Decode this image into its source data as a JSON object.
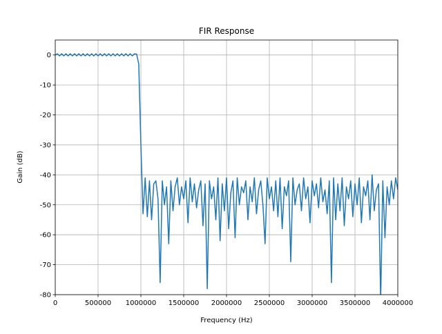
{
  "chart_data": {
    "type": "line",
    "title": "FIR Response",
    "x_label": "Frequency (Hz)",
    "y_label": "Gain (dB)",
    "x": [
      0,
      25000,
      50000,
      75000,
      100000,
      125000,
      150000,
      175000,
      200000,
      225000,
      250000,
      275000,
      300000,
      325000,
      350000,
      375000,
      400000,
      425000,
      450000,
      475000,
      500000,
      525000,
      550000,
      575000,
      600000,
      625000,
      650000,
      675000,
      700000,
      725000,
      750000,
      775000,
      800000,
      825000,
      850000,
      875000,
      900000,
      925000,
      950000,
      975000,
      1000000,
      1025000,
      1050000,
      1075000,
      1100000,
      1125000,
      1150000,
      1175000,
      1200000,
      1225000,
      1250000,
      1275000,
      1300000,
      1325000,
      1350000,
      1375000,
      1400000,
      1425000,
      1450000,
      1475000,
      1500000,
      1525000,
      1550000,
      1575000,
      1600000,
      1625000,
      1650000,
      1675000,
      1700000,
      1725000,
      1750000,
      1775000,
      1800000,
      1825000,
      1850000,
      1875000,
      1900000,
      1925000,
      1950000,
      1975000,
      2000000,
      2025000,
      2050000,
      2075000,
      2100000,
      2125000,
      2150000,
      2175000,
      2200000,
      2225000,
      2250000,
      2275000,
      2300000,
      2325000,
      2350000,
      2375000,
      2400000,
      2425000,
      2450000,
      2475000,
      2500000,
      2525000,
      2550000,
      2575000,
      2600000,
      2625000,
      2650000,
      2675000,
      2700000,
      2725000,
      2750000,
      2775000,
      2800000,
      2825000,
      2850000,
      2875000,
      2900000,
      2925000,
      2950000,
      2975000,
      3000000,
      3025000,
      3050000,
      3075000,
      3100000,
      3125000,
      3150000,
      3175000,
      3200000,
      3225000,
      3250000,
      3275000,
      3300000,
      3325000,
      3350000,
      3375000,
      3400000,
      3425000,
      3450000,
      3475000,
      3500000,
      3525000,
      3550000,
      3575000,
      3600000,
      3625000,
      3650000,
      3675000,
      3700000,
      3725000,
      3750000,
      3775000,
      3800000,
      3825000,
      3850000,
      3875000,
      3900000,
      3925000,
      3950000,
      3975000,
      4000000
    ],
    "series": [
      {
        "color": "#1f77b4",
        "values": [
          0,
          0.4,
          -0.3,
          0.4,
          -0.3,
          0.4,
          -0.3,
          0.4,
          -0.3,
          0.4,
          -0.3,
          0.4,
          -0.3,
          0.4,
          -0.3,
          0.4,
          -0.3,
          0.4,
          -0.3,
          0.4,
          -0.3,
          0.4,
          -0.3,
          0.4,
          -0.3,
          0.4,
          -0.3,
          0.4,
          -0.3,
          0.4,
          -0.3,
          0.4,
          -0.3,
          0.4,
          -0.3,
          0.4,
          -0.3,
          0.4,
          0.3,
          -3,
          -30,
          -53,
          -41,
          -54,
          -42,
          -55,
          -43,
          -42,
          -48,
          -76,
          -42,
          -50,
          -44,
          -63,
          -42,
          -52,
          -44,
          -41,
          -50,
          -44,
          -48,
          -42,
          -56,
          -41,
          -49,
          -43,
          -51,
          -45,
          -42,
          -57,
          -43,
          -78,
          -42,
          -48,
          -44,
          -55,
          -41,
          -62,
          -43,
          -52,
          -41,
          -58,
          -46,
          -42,
          -61,
          -41,
          -50,
          -44,
          -46,
          -42,
          -55,
          -44,
          -49,
          -41,
          -53,
          -45,
          -42,
          -50,
          -63,
          -41,
          -48,
          -44,
          -52,
          -42,
          -54,
          -41,
          -58,
          -44,
          -47,
          -42,
          -69,
          -41,
          -50,
          -45,
          -43,
          -52,
          -41,
          -48,
          -44,
          -56,
          -42,
          -47,
          -43,
          -51,
          -41,
          -49,
          -45,
          -53,
          -42,
          -76,
          -41,
          -55,
          -43,
          -52,
          -41,
          -57,
          -44,
          -48,
          -42,
          -54,
          -43,
          -50,
          -41,
          -56,
          -44,
          -47,
          -42,
          -55,
          -40,
          -52,
          -45,
          -43,
          -82,
          -42,
          -61,
          -44,
          -50,
          -42,
          -48,
          -41,
          -45
        ]
      }
    ],
    "xlim": [
      0,
      4000000
    ],
    "ylim": [
      -80,
      5
    ],
    "xticks": [
      0,
      500000,
      1000000,
      1500000,
      2000000,
      2500000,
      3000000,
      3500000,
      4000000
    ],
    "yticks": [
      0,
      -10,
      -20,
      -30,
      -40,
      -50,
      -60,
      -70,
      -80
    ],
    "grid": true
  }
}
